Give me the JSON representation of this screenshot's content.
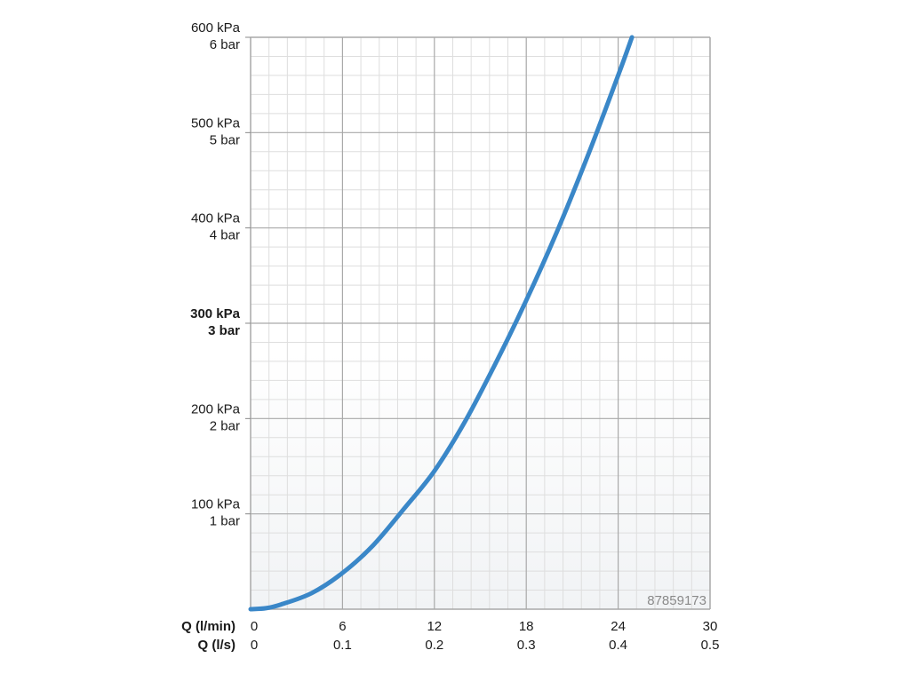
{
  "chart_data": {
    "type": "line",
    "x_label_primary": "Q (l/min)",
    "x_label_secondary": "Q (l/s)",
    "x_ticks_primary": [
      "0",
      "6",
      "12",
      "18",
      "24",
      "30"
    ],
    "x_ticks_secondary": [
      "0",
      "0.1",
      "0.2",
      "0.3",
      "0.4",
      "0.5"
    ],
    "xlim": [
      0,
      30
    ],
    "ylim": [
      0,
      600
    ],
    "y_ticks": [
      {
        "value": 100,
        "kpa": "100 kPa",
        "bar": "1 bar",
        "bold": false
      },
      {
        "value": 200,
        "kpa": "200 kPa",
        "bar": "2 bar",
        "bold": false
      },
      {
        "value": 300,
        "kpa": "300 kPa",
        "bar": "3 bar",
        "bold": true
      },
      {
        "value": 400,
        "kpa": "400 kPa",
        "bar": "4 bar",
        "bold": false
      },
      {
        "value": 500,
        "kpa": "500 kPa",
        "bar": "5 bar",
        "bold": false
      },
      {
        "value": 600,
        "kpa": "600 kPa",
        "bar": "6 bar",
        "bold": false
      }
    ],
    "grid": true,
    "minor_grid_per_major": 5,
    "series": [
      {
        "color": "#3a87c8",
        "x": [
          0,
          1,
          2,
          4,
          6,
          8,
          10,
          12,
          14,
          16,
          18,
          20,
          22,
          24,
          24.9
        ],
        "y": [
          0,
          1,
          5,
          17,
          38,
          67,
          105,
          145,
          197,
          258,
          324,
          396,
          475,
          560,
          600
        ]
      }
    ],
    "watermark": "87859173"
  }
}
